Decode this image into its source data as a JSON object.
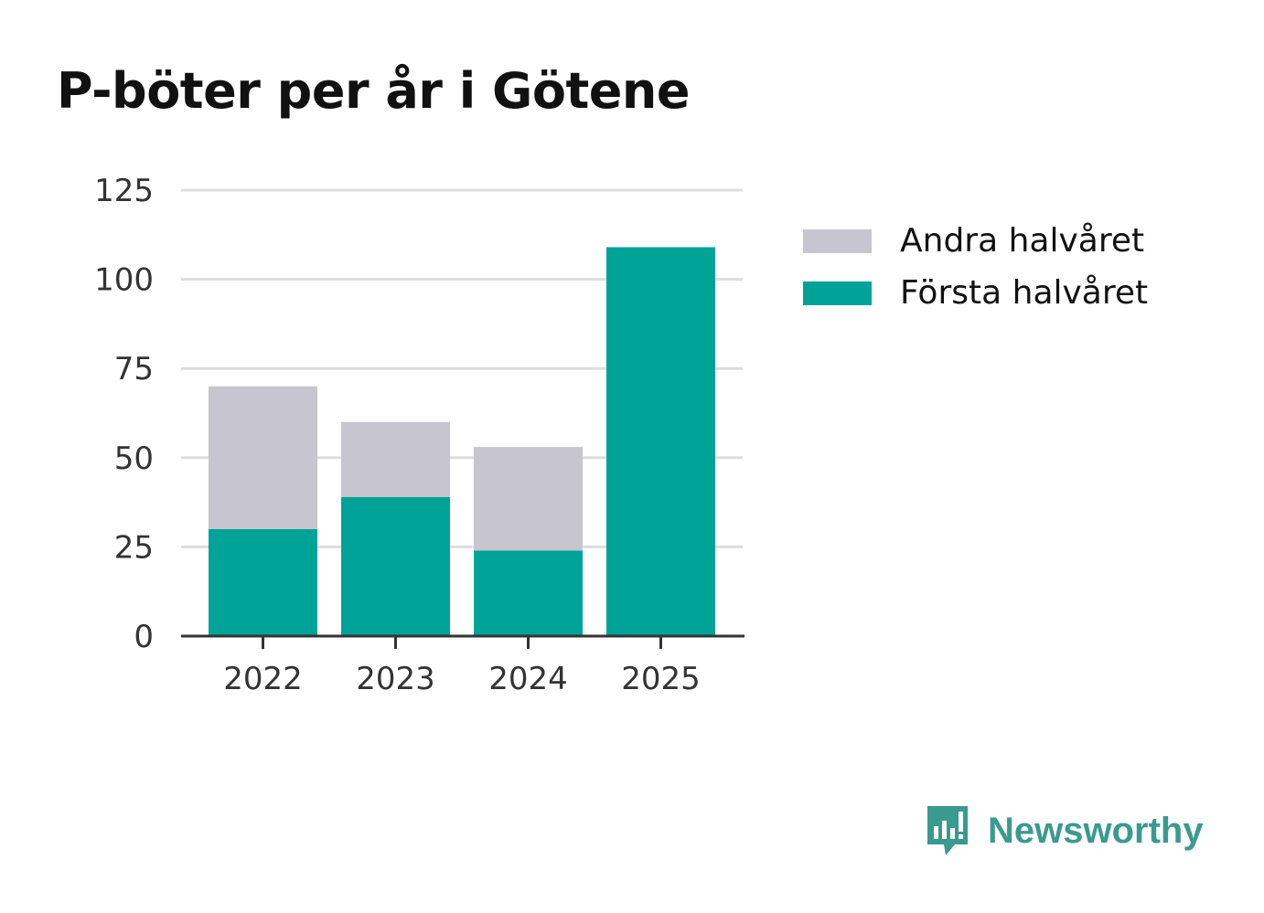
{
  "chart_data": {
    "type": "bar",
    "stacked": true,
    "title": "P-böter per år i Götene",
    "xlabel": "",
    "ylabel": "",
    "categories": [
      "2022",
      "2023",
      "2024",
      "2025"
    ],
    "series": [
      {
        "name": "Första halvåret",
        "color": "#00a398",
        "values": [
          30,
          39,
          24,
          109
        ]
      },
      {
        "name": "Andra halvåret",
        "color": "#c6c5d0",
        "values": [
          40,
          21,
          29,
          0
        ]
      }
    ],
    "ylim": [
      0,
      125
    ],
    "yticks": [
      0,
      25,
      50,
      75,
      100,
      125
    ],
    "grid": true,
    "legend_position": "right",
    "legend": [
      "Andra halvåret",
      "Första halvåret"
    ]
  },
  "brand": {
    "name": "Newsworthy",
    "color": "#3a9a8f"
  }
}
